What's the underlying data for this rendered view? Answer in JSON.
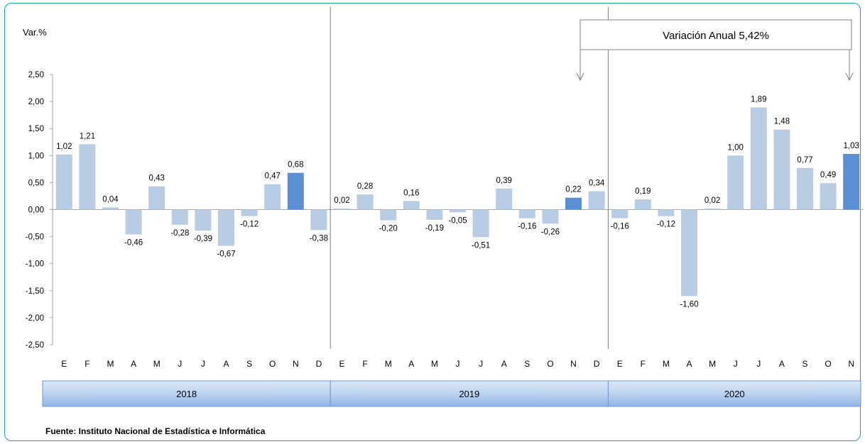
{
  "chart_data": {
    "type": "bar",
    "ylabel": "Var.%",
    "ylim": [
      -2.5,
      2.5
    ],
    "yticks": [
      "2,50",
      "2,00",
      "1,50",
      "1,00",
      "0,50",
      "0,00",
      "-0,50",
      "-1,00",
      "-1,50",
      "-2,00",
      "-2,50"
    ],
    "years": [
      {
        "label": "2018",
        "months": 12
      },
      {
        "label": "2019",
        "months": 12
      },
      {
        "label": "2020",
        "months": 11
      }
    ],
    "categories": [
      "E",
      "F",
      "M",
      "A",
      "M",
      "J",
      "J",
      "A",
      "S",
      "O",
      "N",
      "D",
      "E",
      "F",
      "M",
      "A",
      "M",
      "J",
      "J",
      "A",
      "S",
      "O",
      "N",
      "D",
      "E",
      "F",
      "M",
      "A",
      "M",
      "J",
      "J",
      "A",
      "S",
      "O",
      "N"
    ],
    "values": [
      1.02,
      1.21,
      0.04,
      -0.46,
      0.43,
      -0.28,
      -0.39,
      -0.67,
      -0.12,
      0.47,
      0.68,
      -0.38,
      0.02,
      0.28,
      -0.2,
      0.16,
      -0.19,
      -0.05,
      -0.51,
      0.39,
      -0.16,
      -0.26,
      0.22,
      0.34,
      -0.16,
      0.19,
      -0.12,
      -1.6,
      0.02,
      1.0,
      1.89,
      1.48,
      0.77,
      0.49,
      1.03
    ],
    "value_labels": [
      "1,02",
      "1,21",
      "0,04",
      "-0,46",
      "0,43",
      "-0,28",
      "-0,39",
      "-0,67",
      "-0,12",
      "0,47",
      "0,68",
      "-0,38",
      "0,02",
      "0,28",
      "-0,20",
      "0,16",
      "-0,19",
      "-0,05",
      "-0,51",
      "0,39",
      "-0,16",
      "-0,26",
      "0,22",
      "0,34",
      "-0,16",
      "0,19",
      "-0,12",
      "-1,60",
      "0,02",
      "1,00",
      "1,89",
      "1,48",
      "0,77",
      "0,49",
      "1,03"
    ],
    "highlighted_indices": [
      10,
      22,
      34
    ],
    "colors": {
      "bar": "#b8cce4",
      "highlight": "#5b8fd4",
      "frame": "#1aa89a",
      "year_band_top": "#dbe8f7",
      "year_band_bottom": "#8fb4e3",
      "axis": "#a6a6a6"
    },
    "annotation": "Variación Anual 5,42%"
  },
  "source": "Fuente: Instituto Nacional de Estadística e Informática"
}
